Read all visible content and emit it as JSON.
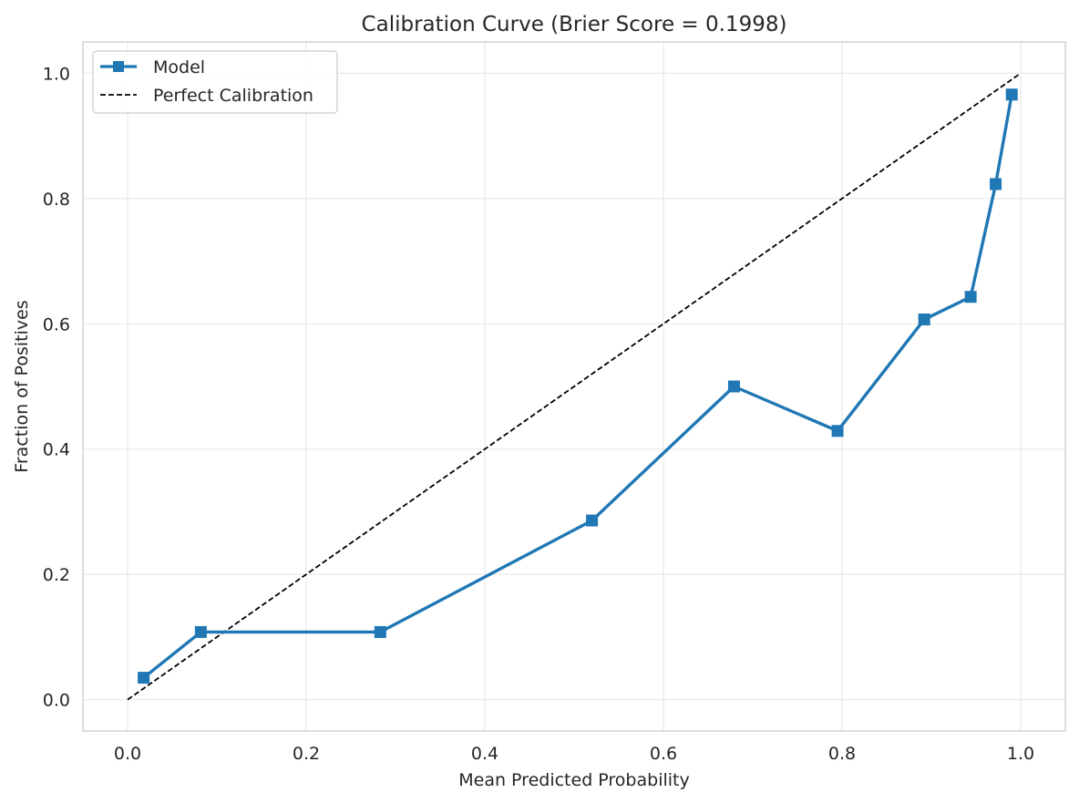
{
  "chart_data": {
    "type": "line",
    "title": "Calibration Curve (Brier Score = 0.1998)",
    "xlabel": "Mean Predicted Probability",
    "ylabel": "Fraction of Positives",
    "xlim": [
      -0.05,
      1.05
    ],
    "ylim": [
      -0.05,
      1.05
    ],
    "xticks": [
      "0.0",
      "0.2",
      "0.4",
      "0.6",
      "0.8",
      "1.0"
    ],
    "yticks": [
      "0.0",
      "0.2",
      "0.4",
      "0.6",
      "0.8",
      "1.0"
    ],
    "grid": true,
    "legend_position": "top-left",
    "series": [
      {
        "name": "Model",
        "style": "solid",
        "marker": "square",
        "color": "#1f77b4",
        "x": [
          0.018,
          0.082,
          0.283,
          0.52,
          0.679,
          0.795,
          0.892,
          0.944,
          0.972,
          0.99
        ],
        "y": [
          0.035,
          0.108,
          0.108,
          0.286,
          0.5,
          0.429,
          0.607,
          0.643,
          0.823,
          0.966
        ]
      },
      {
        "name": "Perfect Calibration",
        "style": "dashed",
        "marker": "none",
        "color": "#000000",
        "x": [
          0,
          1
        ],
        "y": [
          0,
          1
        ]
      }
    ]
  }
}
